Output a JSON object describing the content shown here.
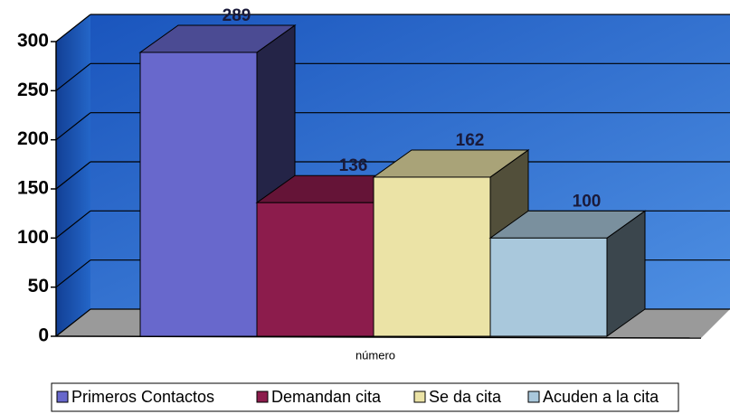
{
  "chart_data": {
    "type": "bar",
    "categories": [
      "número"
    ],
    "series": [
      {
        "name": "Primeros Contactos",
        "color": "#6868cc",
        "values": [
          289
        ]
      },
      {
        "name": "Demandan cita",
        "color": "#8c1c4c",
        "values": [
          136
        ]
      },
      {
        "name": "Se da cita",
        "color": "#ebe3a6",
        "values": [
          162
        ]
      },
      {
        "name": "Acuden a la cita",
        "color": "#a9c8dc",
        "values": [
          100
        ]
      }
    ],
    "ylim": [
      0,
      300
    ],
    "yticks": [
      0,
      50,
      100,
      150,
      200,
      250,
      300
    ],
    "grid": true,
    "legend": "bottom"
  }
}
